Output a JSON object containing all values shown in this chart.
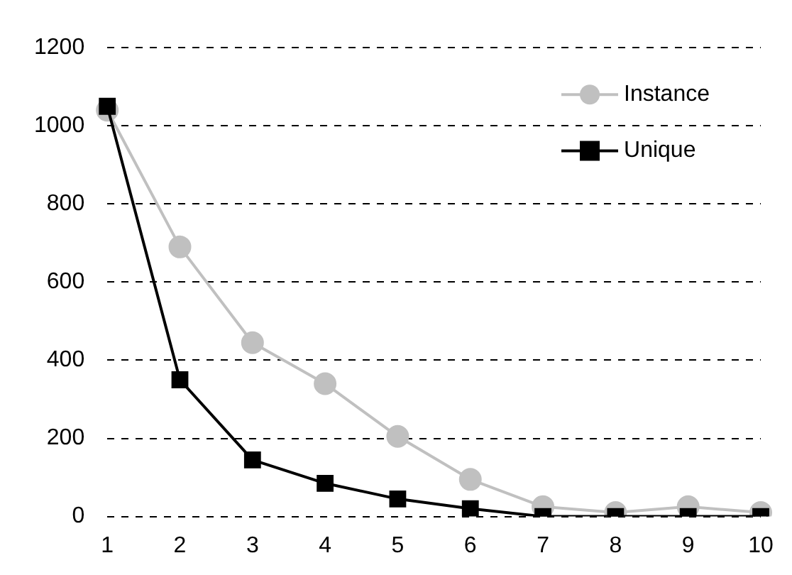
{
  "chart_data": {
    "type": "line",
    "categories": [
      "1",
      "2",
      "3",
      "4",
      "5",
      "6",
      "7",
      "8",
      "9",
      "10"
    ],
    "series": [
      {
        "name": "Instance",
        "color": "#c0c0c0",
        "marker": "circle",
        "values": [
          1040,
          690,
          445,
          340,
          205,
          95,
          25,
          10,
          25,
          10
        ]
      },
      {
        "name": "Unique",
        "color": "#000000",
        "marker": "square",
        "values": [
          1050,
          350,
          145,
          85,
          45,
          20,
          0,
          0,
          0,
          0
        ]
      }
    ],
    "ylim": [
      0,
      1200
    ],
    "yticks": [
      0,
      200,
      400,
      600,
      800,
      1000,
      1200
    ],
    "grid": "y",
    "legend": "top right",
    "line_style": "solid"
  }
}
